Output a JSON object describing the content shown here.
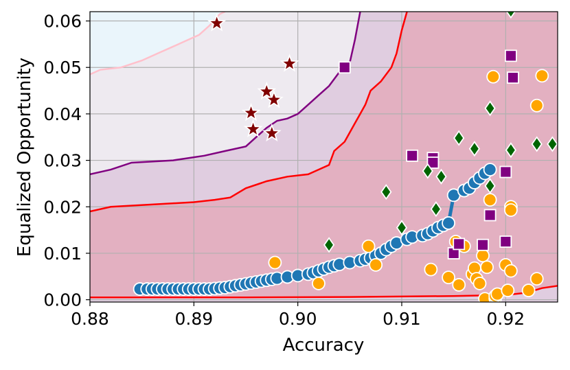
{
  "chart_data": {
    "type": "scatter",
    "xlabel": "Accuracy",
    "ylabel": "Equalized Opportunity",
    "xlim": [
      0.88,
      0.925
    ],
    "ylim": [
      -0.0005,
      0.062
    ],
    "xticks": [
      "0.88",
      "0.89",
      "0.90",
      "0.91",
      "0.92"
    ],
    "yticks": [
      "0.00",
      "0.01",
      "0.02",
      "0.03",
      "0.04",
      "0.05",
      "0.06"
    ],
    "grid": true,
    "colors": {
      "blue": "#1f77b4",
      "orange": "#ffa500",
      "purple": "#800080",
      "green": "#006400",
      "star": "#800000",
      "red_line": "#ff0000",
      "purple_line": "#800080",
      "pink_line": "#ffc0cb",
      "region_red": "#e3b0c1",
      "region_purple": "#e0cde0",
      "region_gray": "#eeeaf0",
      "region_blue": "#eaf5fb"
    },
    "regions": {
      "red_lower": [
        [
          0.88,
          0.0005
        ],
        [
          0.895,
          0.0005
        ],
        [
          0.905,
          0.0006
        ],
        [
          0.91,
          0.0007
        ],
        [
          0.915,
          0.0008
        ],
        [
          0.92,
          0.001
        ],
        [
          0.922,
          0.0015
        ],
        [
          0.9235,
          0.0025
        ],
        [
          0.925,
          0.003
        ]
      ],
      "red_upper": [
        [
          0.88,
          0.019
        ],
        [
          0.882,
          0.02
        ],
        [
          0.886,
          0.0205
        ],
        [
          0.89,
          0.021
        ],
        [
          0.892,
          0.0215
        ],
        [
          0.8935,
          0.022
        ],
        [
          0.895,
          0.024
        ],
        [
          0.897,
          0.0255
        ],
        [
          0.899,
          0.0265
        ],
        [
          0.901,
          0.027
        ],
        [
          0.902,
          0.028
        ],
        [
          0.903,
          0.029
        ],
        [
          0.9035,
          0.032
        ],
        [
          0.9045,
          0.034
        ],
        [
          0.905,
          0.036
        ],
        [
          0.9055,
          0.038
        ],
        [
          0.906,
          0.04
        ],
        [
          0.9065,
          0.042
        ],
        [
          0.907,
          0.045
        ],
        [
          0.908,
          0.047
        ],
        [
          0.909,
          0.05
        ],
        [
          0.9095,
          0.053
        ],
        [
          0.91,
          0.058
        ],
        [
          0.9105,
          0.062
        ]
      ],
      "purple_upper": [
        [
          0.88,
          0.027
        ],
        [
          0.882,
          0.028
        ],
        [
          0.884,
          0.0295
        ],
        [
          0.888,
          0.03
        ],
        [
          0.891,
          0.031
        ],
        [
          0.893,
          0.032
        ],
        [
          0.895,
          0.033
        ],
        [
          0.896,
          0.035
        ],
        [
          0.897,
          0.037
        ],
        [
          0.898,
          0.0385
        ],
        [
          0.899,
          0.039
        ],
        [
          0.9,
          0.04
        ],
        [
          0.901,
          0.042
        ],
        [
          0.902,
          0.044
        ],
        [
          0.903,
          0.046
        ],
        [
          0.904,
          0.049
        ],
        [
          0.905,
          0.051
        ],
        [
          0.9055,
          0.056
        ],
        [
          0.906,
          0.062
        ]
      ],
      "pink_upper": [
        [
          0.88,
          0.0485
        ],
        [
          0.881,
          0.0495
        ],
        [
          0.883,
          0.05
        ],
        [
          0.885,
          0.0515
        ],
        [
          0.8865,
          0.053
        ],
        [
          0.888,
          0.0545
        ],
        [
          0.889,
          0.0555
        ],
        [
          0.8905,
          0.057
        ],
        [
          0.8915,
          0.059
        ],
        [
          0.8925,
          0.0615
        ],
        [
          0.893,
          0.062
        ]
      ]
    },
    "series": [
      {
        "marker": "circle",
        "color": "#1f77b4",
        "connected": true,
        "points": [
          [
            0.8848,
            0.0023
          ],
          [
            0.8855,
            0.0023
          ],
          [
            0.886,
            0.0023
          ],
          [
            0.8865,
            0.0023
          ],
          [
            0.887,
            0.0023
          ],
          [
            0.8875,
            0.0023
          ],
          [
            0.888,
            0.0023
          ],
          [
            0.8885,
            0.0023
          ],
          [
            0.889,
            0.0023
          ],
          [
            0.8895,
            0.0023
          ],
          [
            0.89,
            0.0023
          ],
          [
            0.8905,
            0.0023
          ],
          [
            0.891,
            0.0023
          ],
          [
            0.8915,
            0.0023
          ],
          [
            0.892,
            0.0024
          ],
          [
            0.8925,
            0.0025
          ],
          [
            0.893,
            0.0026
          ],
          [
            0.8935,
            0.0028
          ],
          [
            0.894,
            0.003
          ],
          [
            0.8945,
            0.0032
          ],
          [
            0.895,
            0.0034
          ],
          [
            0.8955,
            0.0036
          ],
          [
            0.896,
            0.0038
          ],
          [
            0.8965,
            0.004
          ],
          [
            0.897,
            0.0042
          ],
          [
            0.8975,
            0.0044
          ],
          [
            0.898,
            0.0046
          ],
          [
            0.899,
            0.0049
          ],
          [
            0.9,
            0.0052
          ],
          [
            0.901,
            0.0055
          ],
          [
            0.9015,
            0.0058
          ],
          [
            0.902,
            0.0062
          ],
          [
            0.9025,
            0.0066
          ],
          [
            0.903,
            0.007
          ],
          [
            0.9035,
            0.0073
          ],
          [
            0.904,
            0.0076
          ],
          [
            0.905,
            0.008
          ],
          [
            0.906,
            0.0084
          ],
          [
            0.9065,
            0.0087
          ],
          [
            0.907,
            0.009
          ],
          [
            0.9075,
            0.0095
          ],
          [
            0.908,
            0.01
          ],
          [
            0.9085,
            0.0108
          ],
          [
            0.909,
            0.0115
          ],
          [
            0.9095,
            0.0122
          ],
          [
            0.9105,
            0.013
          ],
          [
            0.911,
            0.0135
          ],
          [
            0.912,
            0.0138
          ],
          [
            0.9125,
            0.0142
          ],
          [
            0.913,
            0.0148
          ],
          [
            0.9135,
            0.0155
          ],
          [
            0.914,
            0.016
          ],
          [
            0.9145,
            0.0165
          ],
          [
            0.915,
            0.0225
          ],
          [
            0.916,
            0.0235
          ],
          [
            0.9165,
            0.024
          ],
          [
            0.917,
            0.0252
          ],
          [
            0.9175,
            0.0262
          ],
          [
            0.918,
            0.0272
          ],
          [
            0.9185,
            0.028
          ]
        ]
      },
      {
        "marker": "circle",
        "color": "#ffa500",
        "points": [
          [
            0.8978,
            0.008
          ],
          [
            0.902,
            0.0035
          ],
          [
            0.9068,
            0.0115
          ],
          [
            0.9075,
            0.0075
          ],
          [
            0.9128,
            0.0065
          ],
          [
            0.9145,
            0.0048
          ],
          [
            0.9155,
            0.0032
          ],
          [
            0.9152,
            0.0125
          ],
          [
            0.916,
            0.0115
          ],
          [
            0.9168,
            0.0055
          ],
          [
            0.917,
            0.0068
          ],
          [
            0.9172,
            0.0045
          ],
          [
            0.9175,
            0.0035
          ],
          [
            0.9178,
            0.0095
          ],
          [
            0.918,
            0.0002
          ],
          [
            0.9182,
            0.007
          ],
          [
            0.9185,
            0.0215
          ],
          [
            0.9188,
            0.048
          ],
          [
            0.919,
            0.0003
          ],
          [
            0.919,
            0.0008
          ],
          [
            0.9192,
            0.0012
          ],
          [
            0.92,
            0.0075
          ],
          [
            0.9202,
            0.002
          ],
          [
            0.9205,
            0.0062
          ],
          [
            0.9205,
            0.02
          ],
          [
            0.9205,
            0.0193
          ],
          [
            0.9222,
            0.002
          ],
          [
            0.923,
            0.0045
          ],
          [
            0.923,
            0.0418
          ],
          [
            0.9235,
            0.0482
          ]
        ]
      },
      {
        "marker": "square",
        "color": "#800080",
        "points": [
          [
            0.9045,
            0.05
          ],
          [
            0.911,
            0.031
          ],
          [
            0.913,
            0.0305
          ],
          [
            0.913,
            0.0295
          ],
          [
            0.915,
            0.01
          ],
          [
            0.9155,
            0.012
          ],
          [
            0.9178,
            0.0118
          ],
          [
            0.9185,
            0.0182
          ],
          [
            0.92,
            0.0275
          ],
          [
            0.92,
            0.0125
          ],
          [
            0.9205,
            0.0525
          ],
          [
            0.9207,
            0.0478
          ]
        ]
      },
      {
        "marker": "diamond",
        "color": "#006400",
        "points": [
          [
            0.903,
            0.0118
          ],
          [
            0.9085,
            0.0232
          ],
          [
            0.91,
            0.0155
          ],
          [
            0.9125,
            0.0277
          ],
          [
            0.9133,
            0.0195
          ],
          [
            0.9138,
            0.0265
          ],
          [
            0.9155,
            0.0348
          ],
          [
            0.917,
            0.0325
          ],
          [
            0.9185,
            0.0412
          ],
          [
            0.9185,
            0.0245
          ],
          [
            0.9205,
            0.0322
          ],
          [
            0.9205,
            0.0622
          ],
          [
            0.923,
            0.0335
          ],
          [
            0.9245,
            0.0335
          ]
        ]
      },
      {
        "marker": "star",
        "color": "#800000",
        "points": [
          [
            0.8922,
            0.0595
          ],
          [
            0.8955,
            0.0402
          ],
          [
            0.8957,
            0.0367
          ],
          [
            0.897,
            0.0448
          ],
          [
            0.8975,
            0.0358
          ],
          [
            0.8977,
            0.043
          ],
          [
            0.8992,
            0.0508
          ]
        ]
      }
    ]
  }
}
